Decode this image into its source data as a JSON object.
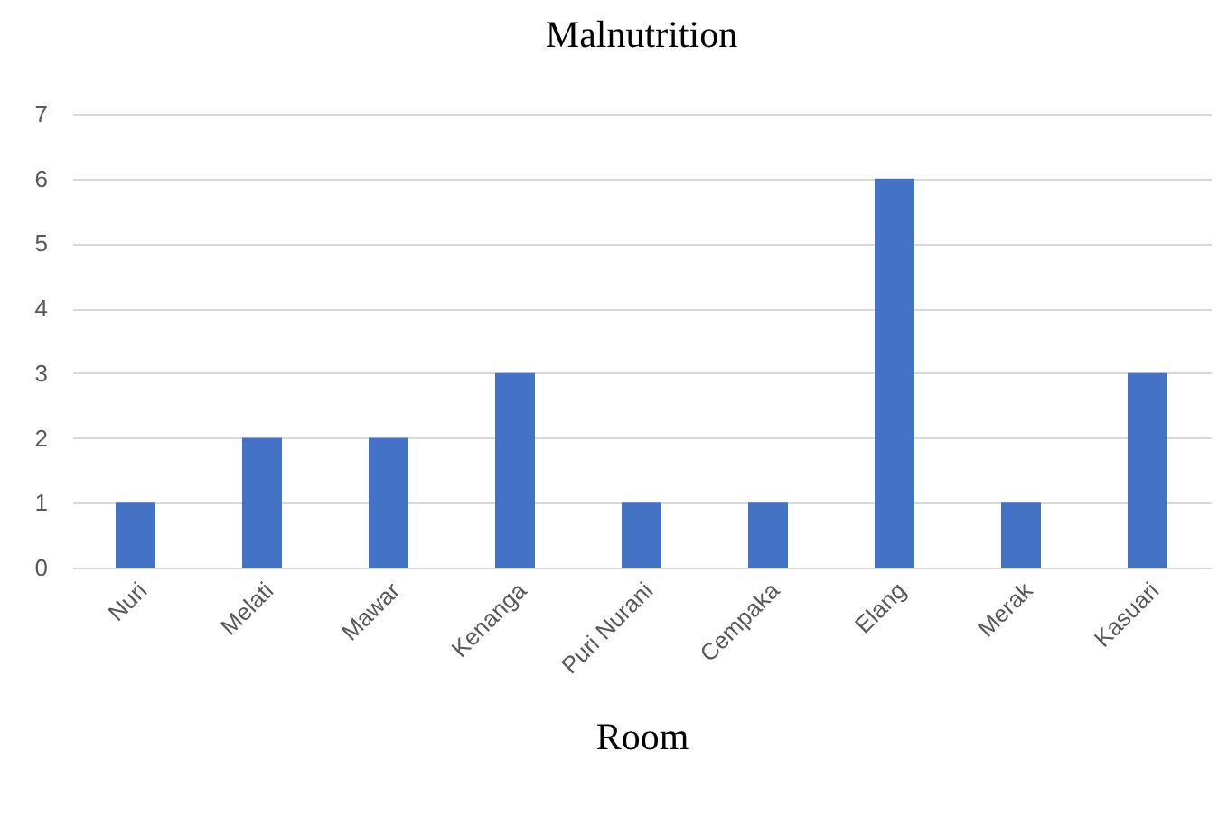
{
  "chart_data": {
    "type": "bar",
    "title": "Malnutrition",
    "xlabel": "Room",
    "categories": [
      "Nuri",
      "Melati",
      "Mawar",
      "Kenanga",
      "Puri Nurani",
      "Cempaka",
      "Elang",
      "Merak",
      "Kasuari"
    ],
    "values": [
      1,
      2,
      2,
      3,
      1,
      1,
      6,
      1,
      3
    ],
    "color": "#4472c4",
    "ylim": [
      0,
      7
    ],
    "yticks": [
      0,
      1,
      2,
      3,
      4,
      5,
      6,
      7
    ],
    "grid": "y"
  }
}
